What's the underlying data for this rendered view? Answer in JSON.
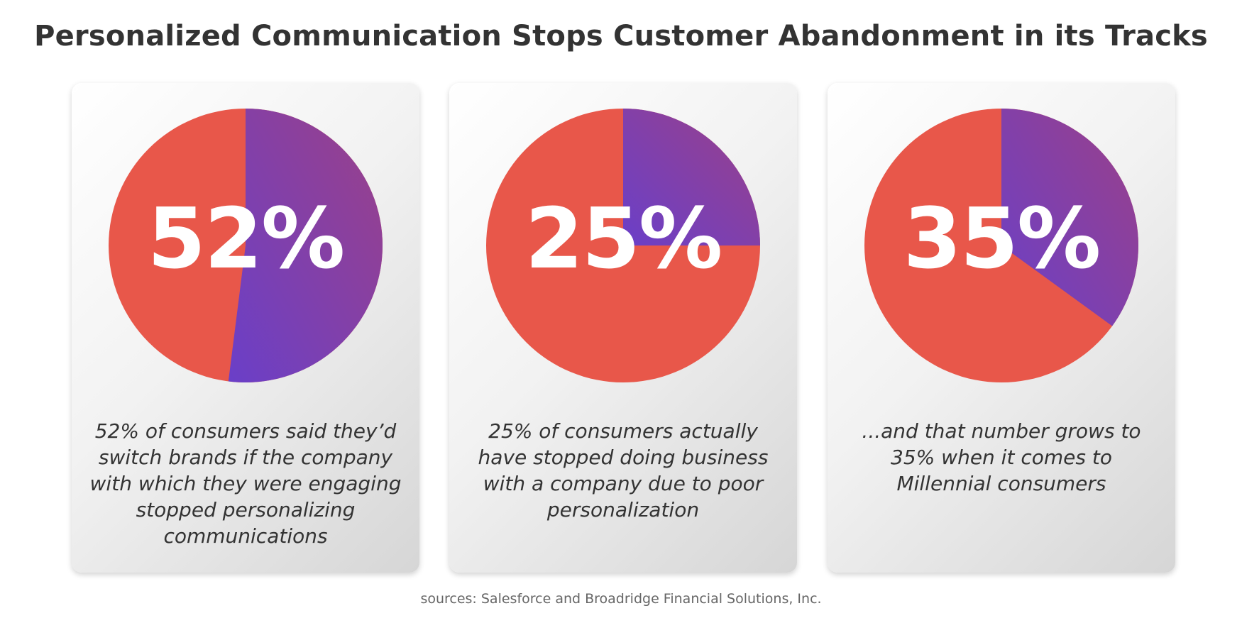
{
  "chart_data": {
    "type": "pie",
    "title": "Personalized Communication Stops Customer Abandonment in its Tracks",
    "charts": [
      {
        "value": 52,
        "label": "52%",
        "description": "52% of consumers said they’d switch brands if the company with which they were engaging stopped personalizing communications"
      },
      {
        "value": 25,
        "label": "25%",
        "description": "25% of consumers actually have stopped doing business with a company due to poor personalization"
      },
      {
        "value": 35,
        "label": "35%",
        "description": "...and that number grows to 35% when it comes to Millennial consumers"
      }
    ],
    "source": "sources: Salesforce and Broadridge Financial Solutions, Inc.",
    "colors": {
      "highlight_start": "#6a3fc8",
      "highlight_end": "#9b4188",
      "remainder": "#e8574a"
    }
  }
}
